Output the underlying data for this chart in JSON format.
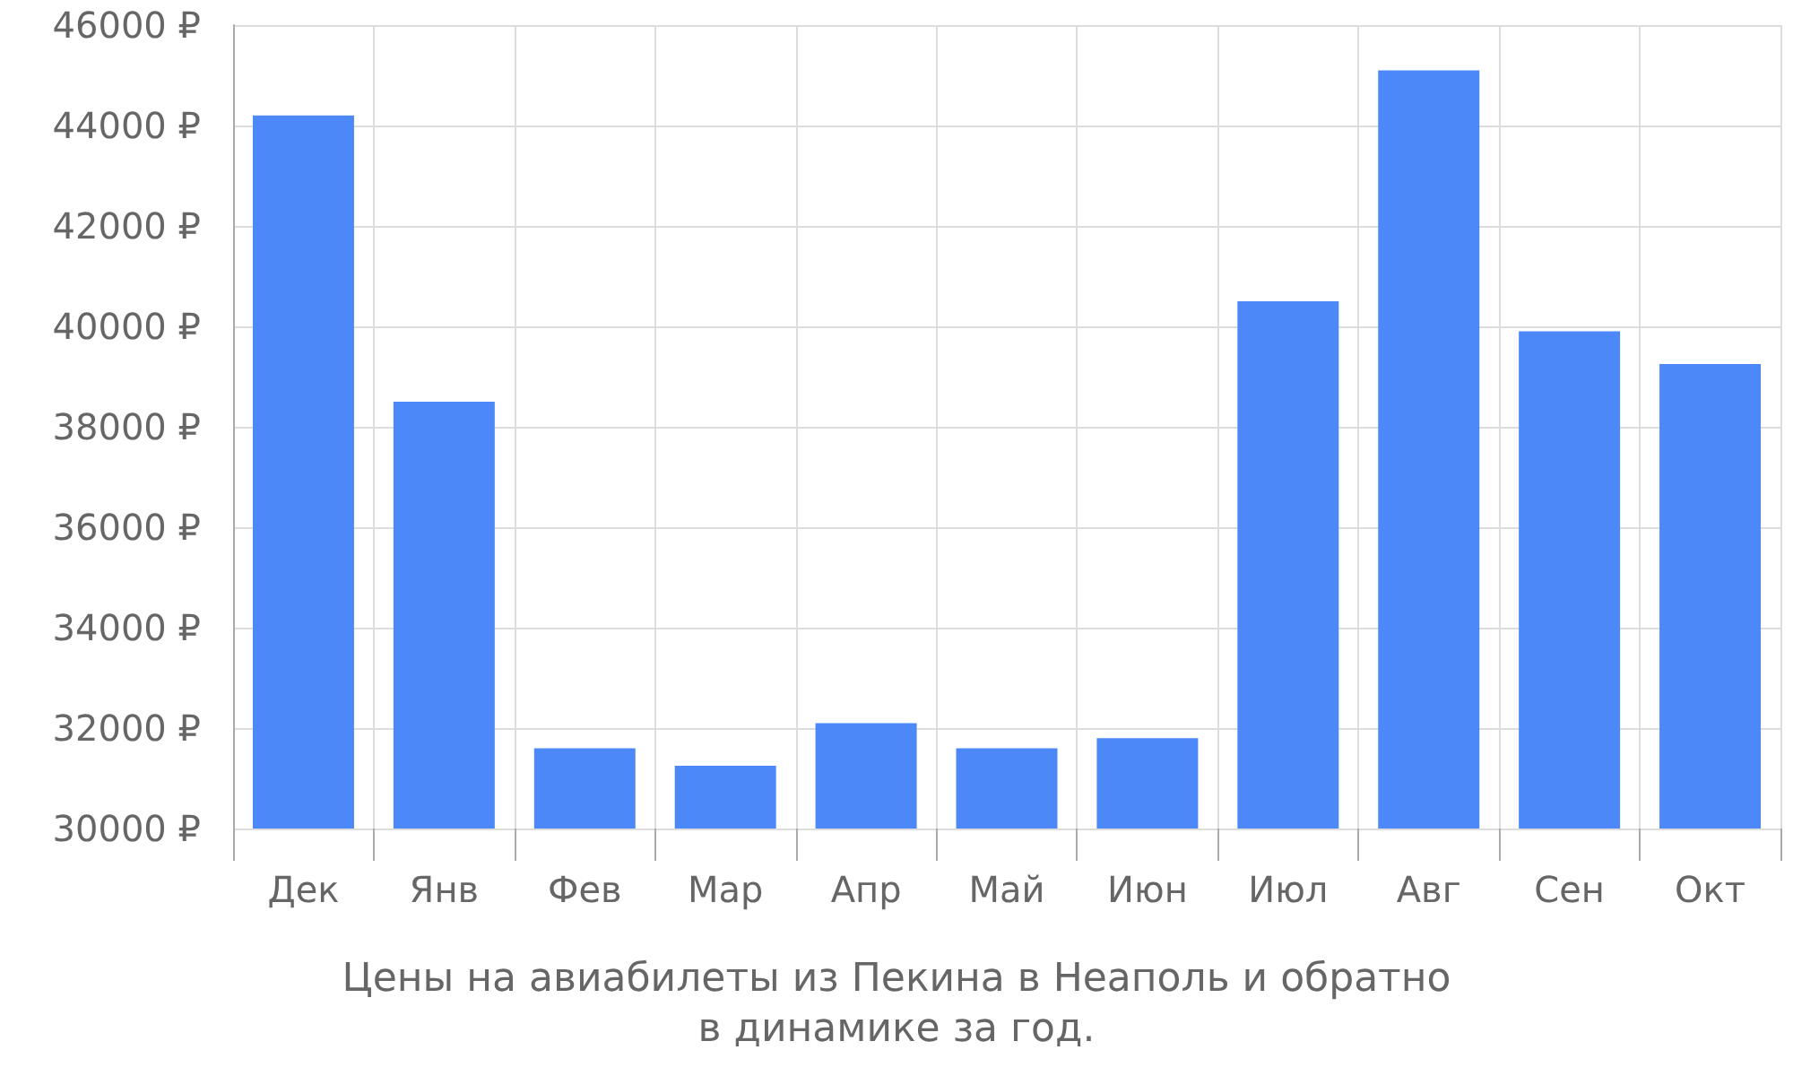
{
  "chart_data": {
    "type": "bar",
    "title": "Цены на авиабилеты из Пекина в Неаполь и обратно",
    "subtitle": "в динамике за год.",
    "categories": [
      "Дек",
      "Янв",
      "Фев",
      "Мар",
      "Апр",
      "Май",
      "Июн",
      "Июл",
      "Авг",
      "Сен",
      "Окт"
    ],
    "values": [
      44200,
      38500,
      31600,
      31250,
      32100,
      31600,
      31800,
      40500,
      45100,
      39900,
      39250
    ],
    "color": "#4d88f9",
    "ylim": [
      30000,
      46000
    ],
    "yticks": [
      {
        "value": 30000,
        "label": "30000 ₽"
      },
      {
        "value": 32000,
        "label": "32000 ₽"
      },
      {
        "value": 34000,
        "label": "34000 ₽"
      },
      {
        "value": 36000,
        "label": "36000 ₽"
      },
      {
        "value": 38000,
        "label": "38000 ₽"
      },
      {
        "value": 40000,
        "label": "40000 ₽"
      },
      {
        "value": 42000,
        "label": "42000 ₽"
      },
      {
        "value": 44000,
        "label": "44000 ₽"
      },
      {
        "value": 46000,
        "label": "46000 ₽"
      }
    ],
    "grid": true
  }
}
